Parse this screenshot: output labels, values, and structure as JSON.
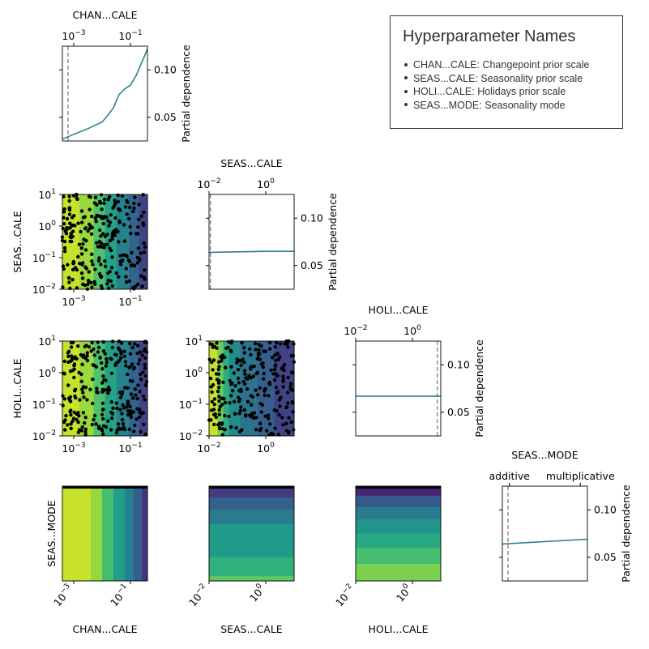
{
  "legend": {
    "title": "Hyperparameter Names",
    "items": [
      {
        "abbr": "CHAN...CALE",
        "full": "Changepoint prior scale"
      },
      {
        "abbr": "SEAS...CALE",
        "full": "Seasonality prior scale"
      },
      {
        "abbr": "HOLI...CALE",
        "full": "Holidays prior scale"
      },
      {
        "abbr": "SEAS...MODE",
        "full": "Seasonality mode"
      }
    ]
  },
  "chart_data": {
    "type": "pairplot",
    "y_axis_label": "Partial dependence",
    "pd_ylim": [
      0.025,
      0.125
    ],
    "pd_yticks": [
      "0.05",
      "0.10"
    ],
    "params": [
      {
        "key": "chan",
        "label": "CHAN...CALE",
        "scale": "log",
        "range": [
          -3.4,
          -0.4
        ],
        "ticks": [
          {
            "exp": -3,
            "label": "10^-3"
          },
          {
            "exp": -1,
            "label": "10^-1"
          }
        ],
        "best_exp": -3.2
      },
      {
        "key": "seas",
        "label": "SEAS...CALE",
        "scale": "log",
        "range": [
          -2,
          1
        ],
        "ticks": [
          {
            "exp": -2,
            "label": "10^-2"
          },
          {
            "exp": 0,
            "label": "10^0"
          }
        ],
        "best_exp": -1.95
      },
      {
        "key": "holi",
        "label": "HOLI...CALE",
        "scale": "log",
        "range": [
          -2,
          1
        ],
        "ticks": [
          {
            "exp": -2,
            "label": "10^-2"
          },
          {
            "exp": 0,
            "label": "10^0"
          }
        ],
        "best_exp": 0.88
      },
      {
        "key": "mode",
        "label": "SEAS...MODE",
        "scale": "categorical",
        "range": [
          -0.1,
          1.1
        ],
        "ticks": [
          {
            "pos": 0,
            "label": "additive"
          },
          {
            "pos": 1,
            "label": "multiplicative"
          }
        ],
        "best_exp": -0.02
      }
    ],
    "pd_series": [
      {
        "x": [
          -3.4,
          -3.0,
          -2.5,
          -2.0,
          -1.8,
          -1.6,
          -1.4,
          -1.2,
          -1.0,
          -0.8,
          -0.6,
          -0.4
        ],
        "y": [
          0.027,
          0.032,
          0.038,
          0.045,
          0.052,
          0.06,
          0.074,
          0.08,
          0.084,
          0.094,
          0.108,
          0.122
        ]
      },
      {
        "x": [
          -2,
          -1,
          0,
          1
        ],
        "y": [
          0.064,
          0.0645,
          0.065,
          0.065
        ]
      },
      {
        "x": [
          -2,
          1
        ],
        "y": [
          0.067,
          0.067
        ]
      },
      {
        "x": [
          -0.1,
          1.1
        ],
        "y": [
          0.064,
          0.069
        ]
      }
    ],
    "y_axis_ticks": {
      "seas": [
        {
          "exp": -2,
          "label": "10^-2"
        },
        {
          "exp": -1,
          "label": "10^-1"
        },
        {
          "exp": 0,
          "label": "10^0"
        },
        {
          "exp": 1,
          "label": "10^1"
        }
      ],
      "holi": [
        {
          "exp": -2,
          "label": "10^-2"
        },
        {
          "exp": -1,
          "label": "10^-1"
        },
        {
          "exp": 0,
          "label": "10^0"
        },
        {
          "exp": 1,
          "label": "10^1"
        }
      ]
    },
    "colormap": "viridis",
    "bands": {
      "seas_vs_chan": [
        {
          "lo": -3.4,
          "hi": -2.8,
          "t": 0.92
        },
        {
          "lo": -2.8,
          "hi": -2.3,
          "t": 0.85
        },
        {
          "lo": -2.3,
          "hi": -1.9,
          "t": 0.72
        },
        {
          "lo": -1.9,
          "hi": -1.5,
          "t": 0.58
        },
        {
          "lo": -1.5,
          "hi": -1.05,
          "t": 0.45
        },
        {
          "lo": -1.05,
          "hi": -0.7,
          "t": 0.32
        },
        {
          "lo": -0.7,
          "hi": -0.4,
          "t": 0.2
        }
      ],
      "holi_vs_chan": [
        {
          "lo": -3.4,
          "hi": -2.8,
          "t": 0.92
        },
        {
          "lo": -2.8,
          "hi": -2.3,
          "t": 0.85
        },
        {
          "lo": -2.3,
          "hi": -1.9,
          "t": 0.72
        },
        {
          "lo": -1.9,
          "hi": -1.5,
          "t": 0.58
        },
        {
          "lo": -1.5,
          "hi": -1.05,
          "t": 0.45
        },
        {
          "lo": -1.05,
          "hi": -0.7,
          "t": 0.32
        },
        {
          "lo": -0.7,
          "hi": -0.4,
          "t": 0.2
        }
      ],
      "holi_vs_seas": [
        {
          "lo": -2.0,
          "hi": -1.7,
          "t": 0.92
        },
        {
          "lo": -1.7,
          "hi": -1.5,
          "t": 0.78
        },
        {
          "lo": -1.5,
          "hi": -1.3,
          "t": 0.62
        },
        {
          "lo": -1.3,
          "hi": -0.9,
          "t": 0.48
        },
        {
          "lo": -0.9,
          "hi": -0.3,
          "t": 0.38
        },
        {
          "lo": -0.3,
          "hi": 0.3,
          "t": 0.3
        },
        {
          "lo": 0.3,
          "hi": 1.0,
          "t": 0.2
        }
      ],
      "mode_vs_chan": [
        {
          "lo": -3.4,
          "hi": -2.4,
          "t": 0.92
        },
        {
          "lo": -2.4,
          "hi": -2.0,
          "t": 0.84
        },
        {
          "lo": -2.0,
          "hi": -1.6,
          "t": 0.7
        },
        {
          "lo": -1.6,
          "hi": -1.2,
          "t": 0.56
        },
        {
          "lo": -1.2,
          "hi": -0.9,
          "t": 0.44
        },
        {
          "lo": -0.9,
          "hi": -0.6,
          "t": 0.3
        },
        {
          "lo": -0.6,
          "hi": -0.4,
          "t": 0.16
        }
      ],
      "mode_vs_seas": [
        {
          "lo": 0.0,
          "hi": 0.12,
          "t": 0.82
        },
        {
          "lo": 0.12,
          "hi": 0.25,
          "t": 0.7
        },
        {
          "lo": 0.25,
          "hi": 0.4,
          "t": 0.58
        },
        {
          "lo": 0.4,
          "hi": 0.75,
          "t": 0.46
        },
        {
          "lo": 0.75,
          "hi": 0.95,
          "t": 0.36
        },
        {
          "lo": 0.95,
          "hi": 1.0,
          "t": 0.25
        }
      ],
      "mode_vs_holi": [
        {
          "lo": 0.0,
          "hi": 0.1,
          "t": 0.9
        },
        {
          "lo": 0.1,
          "hi": 0.22,
          "t": 0.72
        },
        {
          "lo": 0.22,
          "hi": 0.35,
          "t": 0.58
        },
        {
          "lo": 0.35,
          "hi": 0.5,
          "t": 0.48
        },
        {
          "lo": 0.5,
          "hi": 0.65,
          "t": 0.4
        },
        {
          "lo": 0.65,
          "hi": 0.82,
          "t": 0.3
        },
        {
          "lo": 0.82,
          "hi": 1.0,
          "t": 0.2
        }
      ]
    },
    "grid": false
  }
}
